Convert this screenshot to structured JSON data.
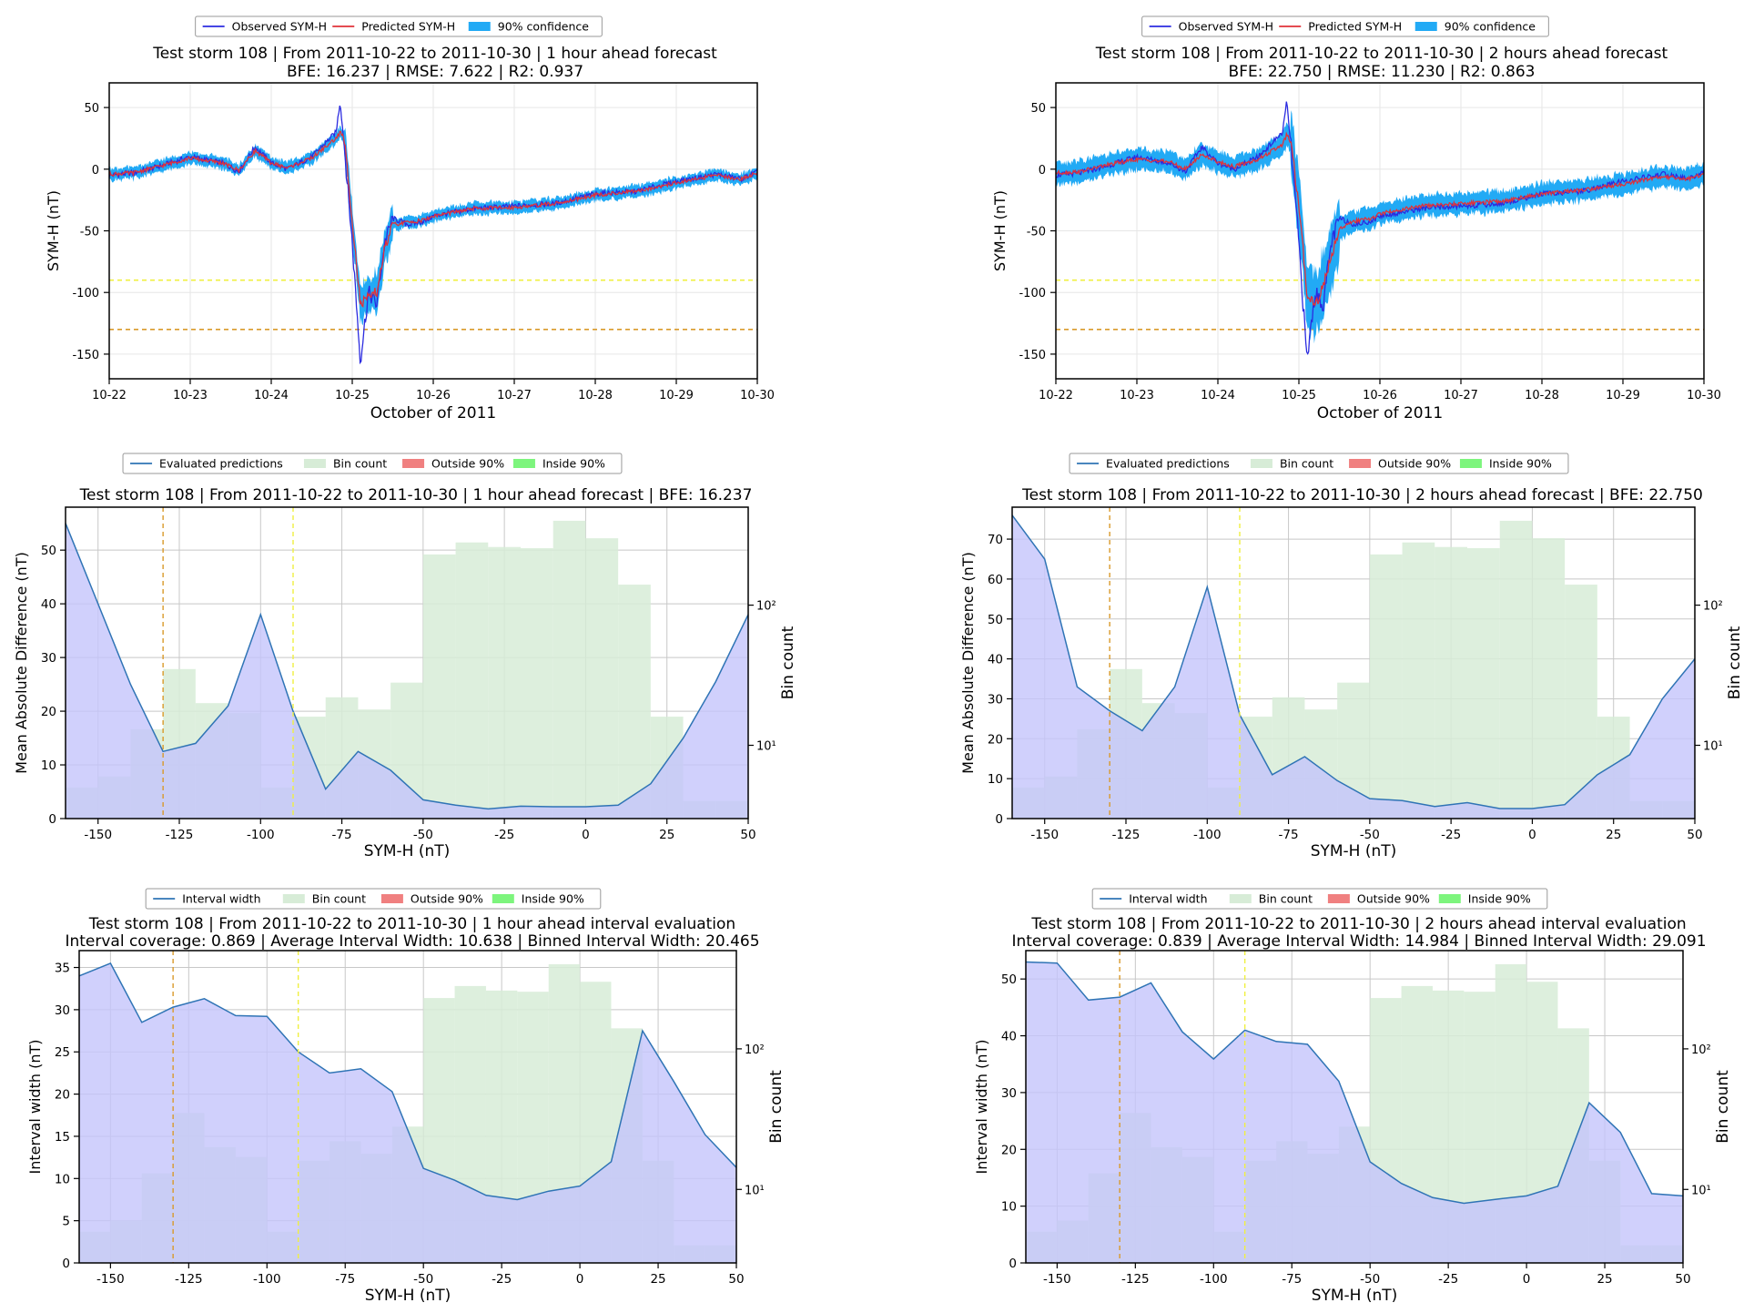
{
  "colors": {
    "observed": "#2b2be0",
    "predicted": "#e0323a",
    "band": "#22aaf5",
    "eval_line": "#2f74b5",
    "mad_fill": "#c4c4fb",
    "bin_fill": "#d7ecd7",
    "outside": "#f08080",
    "inside": "#7df57d",
    "thr_orange": "#d99a2b",
    "thr_yellow": "#f0f040"
  },
  "chart_data": [
    {
      "panel": "ts-1h",
      "type": "line",
      "legend": [
        "Observed SYM-H",
        "Predicted SYM-H",
        "90% confidence"
      ],
      "title_line1": "Test storm 108 | From 2011-10-22 to 2011-10-30 | 1 hour ahead forecast",
      "title_line2": "BFE: 16.237 | RMSE: 7.622 | R2: 0.937",
      "xlabel": "October of 2011",
      "ylabel": "SYM-H (nT)",
      "x_ticks": [
        "10-22",
        "10-23",
        "10-24",
        "10-25",
        "10-26",
        "10-27",
        "10-28",
        "10-29",
        "10-30"
      ],
      "xlim": [
        0,
        8
      ],
      "ylim": [
        -170,
        70
      ],
      "y_ticks": [
        50,
        0,
        -50,
        -100,
        -150
      ],
      "thresholds": [
        -90,
        -130
      ],
      "band_halfwidth": 5,
      "series": [
        {
          "name": "Observed SYM-H",
          "x": [
            0,
            0.3,
            0.6,
            1.0,
            1.4,
            1.6,
            1.8,
            2.0,
            2.2,
            2.5,
            2.8,
            2.85,
            2.9,
            3.0,
            3.1,
            3.2,
            3.3,
            3.4,
            3.5,
            3.7,
            3.9,
            4.0,
            4.5,
            5.0,
            5.5,
            6.0,
            6.5,
            7.0,
            7.5,
            7.8,
            8.0
          ],
          "y": [
            -5,
            -3,
            2,
            10,
            5,
            -2,
            18,
            5,
            0,
            10,
            30,
            55,
            20,
            -60,
            -155,
            -100,
            -110,
            -60,
            -40,
            -45,
            -42,
            -38,
            -32,
            -30,
            -28,
            -20,
            -18,
            -10,
            -4,
            -8,
            -2
          ]
        },
        {
          "name": "Predicted SYM-H",
          "x": [
            0,
            0.3,
            0.6,
            1.0,
            1.4,
            1.6,
            1.8,
            2.0,
            2.2,
            2.5,
            2.8,
            2.85,
            2.9,
            3.0,
            3.1,
            3.2,
            3.3,
            3.4,
            3.5,
            3.7,
            3.9,
            4.0,
            4.5,
            5.0,
            5.5,
            6.0,
            6.5,
            7.0,
            7.5,
            7.8,
            8.0
          ],
          "y": [
            -4,
            -3,
            2,
            9,
            5,
            -1,
            15,
            5,
            1,
            9,
            25,
            30,
            25,
            -40,
            -110,
            -105,
            -100,
            -65,
            -45,
            -43,
            -41,
            -38,
            -32,
            -31,
            -28,
            -21,
            -18,
            -11,
            -5,
            -8,
            -3
          ]
        }
      ]
    },
    {
      "panel": "ts-2h",
      "type": "line",
      "legend": [
        "Observed SYM-H",
        "Predicted SYM-H",
        "90% confidence"
      ],
      "title_line1": "Test storm 108 | From 2011-10-22 to 2011-10-30 | 2 hours ahead forecast",
      "title_line2": "BFE: 22.750 | RMSE: 11.230 | R2: 0.863",
      "xlabel": "October of 2011",
      "ylabel": "SYM-H (nT)",
      "x_ticks": [
        "10-22",
        "10-23",
        "10-24",
        "10-25",
        "10-26",
        "10-27",
        "10-28",
        "10-29",
        "10-30"
      ],
      "xlim": [
        0,
        8
      ],
      "ylim": [
        -170,
        70
      ],
      "y_ticks": [
        50,
        0,
        -50,
        -100,
        -150
      ],
      "thresholds": [
        -90,
        -130
      ],
      "band_halfwidth": 9,
      "series": [
        {
          "name": "Observed SYM-H",
          "x": [
            0,
            0.3,
            0.6,
            1.0,
            1.4,
            1.6,
            1.8,
            2.0,
            2.2,
            2.5,
            2.8,
            2.85,
            2.9,
            3.0,
            3.1,
            3.2,
            3.3,
            3.4,
            3.5,
            3.7,
            3.9,
            4.0,
            4.5,
            5.0,
            5.5,
            6.0,
            6.5,
            7.0,
            7.5,
            7.8,
            8.0
          ],
          "y": [
            -5,
            -3,
            2,
            10,
            5,
            -2,
            18,
            5,
            0,
            10,
            30,
            55,
            20,
            -60,
            -155,
            -100,
            -110,
            -60,
            -40,
            -45,
            -42,
            -38,
            -32,
            -30,
            -28,
            -20,
            -18,
            -10,
            -4,
            -8,
            -2
          ]
        },
        {
          "name": "Predicted SYM-H",
          "x": [
            0,
            0.3,
            0.6,
            1.0,
            1.4,
            1.6,
            1.8,
            2.0,
            2.2,
            2.5,
            2.8,
            2.85,
            2.9,
            3.0,
            3.1,
            3.2,
            3.3,
            3.4,
            3.5,
            3.7,
            3.9,
            4.0,
            4.5,
            5.0,
            5.5,
            6.0,
            6.5,
            7.0,
            7.5,
            7.8,
            8.0
          ],
          "y": [
            -3,
            -2,
            3,
            8,
            6,
            0,
            12,
            6,
            2,
            8,
            20,
            28,
            22,
            -30,
            -100,
            -110,
            -95,
            -70,
            -48,
            -42,
            -40,
            -36,
            -30,
            -28,
            -26,
            -20,
            -17,
            -12,
            -6,
            -8,
            -4
          ]
        }
      ]
    },
    {
      "panel": "mad-1h",
      "type": "area",
      "legend": [
        "Evaluated predictions",
        "Bin count",
        "Outside 90%",
        "Inside 90%"
      ],
      "title_line1": "Test storm 108 | From 2011-10-22 to 2011-10-30 | 1 hour ahead forecast | BFE: 16.237",
      "xlabel": "SYM-H (nT)",
      "ylabel": "Mean Absolute Difference (nT)",
      "y2label": "Bin count",
      "xlim": [
        -160,
        50
      ],
      "ylim": [
        0,
        58
      ],
      "y_ticks": [
        0,
        10,
        20,
        30,
        40,
        50
      ],
      "x_ticks": [
        -150,
        -125,
        -100,
        -75,
        -50,
        -25,
        0,
        25,
        50
      ],
      "y2lim": [
        3,
        500
      ],
      "y2_ticks": [
        10,
        100
      ],
      "y2_tick_labels": [
        "10¹",
        "10²"
      ],
      "thresholds": [
        -90,
        -130
      ],
      "x": [
        -160,
        -150,
        -140,
        -130,
        -120,
        -110,
        -100,
        -90,
        -80,
        -70,
        -60,
        -50,
        -40,
        -30,
        -20,
        -10,
        0,
        10,
        20,
        30,
        40,
        50
      ],
      "values": [
        55,
        40,
        25,
        12.5,
        14,
        21,
        38,
        20,
        5.5,
        12.5,
        9,
        3.5,
        2.5,
        1.8,
        2.3,
        2.2,
        2.2,
        2.5,
        6.5,
        15,
        25.5,
        38
      ],
      "bin_edges": [
        -160,
        -150,
        -140,
        -130,
        -120,
        -110,
        -100,
        -90,
        -80,
        -70,
        -60,
        -50,
        -40,
        -30,
        -20,
        -10,
        0,
        10,
        20,
        30,
        40,
        50
      ],
      "bin_counts": [
        5,
        6,
        13,
        35,
        20,
        17,
        5,
        16,
        22,
        18,
        28,
        230,
        280,
        260,
        255,
        400,
        300,
        140,
        16,
        4,
        4
      ]
    },
    {
      "panel": "mad-2h",
      "type": "area",
      "legend": [
        "Evaluated predictions",
        "Bin count",
        "Outside 90%",
        "Inside 90%"
      ],
      "title_line1": "Test storm 108 | From 2011-10-22 to 2011-10-30 | 2 hours ahead forecast | BFE: 22.750",
      "xlabel": "SYM-H (nT)",
      "ylabel": "Mean Absolute Difference (nT)",
      "y2label": "Bin count",
      "xlim": [
        -160,
        50
      ],
      "ylim": [
        0,
        78
      ],
      "y_ticks": [
        0,
        10,
        20,
        30,
        40,
        50,
        60,
        70
      ],
      "x_ticks": [
        -150,
        -125,
        -100,
        -75,
        -50,
        -25,
        0,
        25,
        50
      ],
      "y2lim": [
        3,
        500
      ],
      "y2_ticks": [
        10,
        100
      ],
      "y2_tick_labels": [
        "10¹",
        "10²"
      ],
      "thresholds": [
        -90,
        -130
      ],
      "x": [
        -160,
        -150,
        -140,
        -130,
        -120,
        -110,
        -100,
        -90,
        -80,
        -70,
        -60,
        -50,
        -40,
        -30,
        -20,
        -10,
        0,
        10,
        20,
        30,
        40,
        50
      ],
      "values": [
        76,
        65,
        33,
        27,
        22,
        33,
        58,
        26,
        11,
        15.5,
        9.5,
        5,
        4.5,
        3,
        4,
        2.5,
        2.5,
        3.5,
        11,
        16,
        30,
        40
      ],
      "bin_edges": [
        -160,
        -150,
        -140,
        -130,
        -120,
        -110,
        -100,
        -90,
        -80,
        -70,
        -60,
        -50,
        -40,
        -30,
        -20,
        -10,
        0,
        10,
        20,
        30,
        40,
        50
      ],
      "bin_counts": [
        5,
        6,
        13,
        35,
        20,
        17,
        5,
        16,
        22,
        18,
        28,
        230,
        280,
        260,
        255,
        400,
        300,
        140,
        16,
        4,
        4
      ]
    },
    {
      "panel": "iw-1h",
      "type": "area",
      "legend": [
        "Interval width",
        "Bin count",
        "Outside 90%",
        "Inside 90%"
      ],
      "title_line1": "Test storm 108 | From 2011-10-22 to 2011-10-30 | 1 hour ahead interval evaluation",
      "title_line2": "Interval coverage: 0.869 | Average Interval Width: 10.638 | Binned Interval Width: 20.465",
      "xlabel": "SYM-H (nT)",
      "ylabel": "Interval width (nT)",
      "y2label": "Bin count",
      "xlim": [
        -160,
        50
      ],
      "ylim": [
        0,
        37
      ],
      "y_ticks": [
        0,
        5,
        10,
        15,
        20,
        25,
        30,
        35
      ],
      "x_ticks": [
        -150,
        -125,
        -100,
        -75,
        -50,
        -25,
        0,
        25,
        50
      ],
      "y2lim": [
        3,
        500
      ],
      "y2_ticks": [
        10,
        100
      ],
      "y2_tick_labels": [
        "10¹",
        "10²"
      ],
      "thresholds": [
        -90,
        -130
      ],
      "x": [
        -160,
        -150,
        -140,
        -130,
        -120,
        -110,
        -100,
        -90,
        -80,
        -70,
        -60,
        -50,
        -40,
        -30,
        -20,
        -10,
        0,
        10,
        20,
        30,
        40,
        50
      ],
      "values": [
        34,
        35.5,
        28.5,
        30.3,
        31.3,
        29.3,
        29.2,
        25,
        22.5,
        23,
        20.3,
        11.2,
        9.8,
        8,
        7.5,
        8.5,
        9.1,
        12,
        27.5,
        21.5,
        15.2,
        11.3
      ],
      "bin_edges": [
        -160,
        -150,
        -140,
        -130,
        -120,
        -110,
        -100,
        -90,
        -80,
        -70,
        -60,
        -50,
        -40,
        -30,
        -20,
        -10,
        0,
        10,
        20,
        30,
        40,
        50
      ],
      "bin_counts": [
        5,
        6,
        13,
        35,
        20,
        17,
        5,
        16,
        22,
        18,
        28,
        230,
        280,
        260,
        255,
        400,
        300,
        140,
        16,
        4,
        4
      ]
    },
    {
      "panel": "iw-2h",
      "type": "area",
      "legend": [
        "Interval width",
        "Bin count",
        "Outside 90%",
        "Inside 90%"
      ],
      "title_line1": "Test storm 108 | From 2011-10-22 to 2011-10-30 | 2 hours ahead interval evaluation",
      "title_line2": "Interval coverage: 0.839 | Average Interval Width: 14.984 | Binned Interval Width: 29.091",
      "xlabel": "SYM-H (nT)",
      "ylabel": "Interval width (nT)",
      "y2label": "Bin count",
      "xlim": [
        -160,
        50
      ],
      "ylim": [
        0,
        55
      ],
      "y_ticks": [
        0,
        10,
        20,
        30,
        40,
        50
      ],
      "x_ticks": [
        -150,
        -125,
        -100,
        -75,
        -50,
        -25,
        0,
        25,
        50
      ],
      "y2lim": [
        3,
        500
      ],
      "y2_ticks": [
        10,
        100
      ],
      "y2_tick_labels": [
        "10¹",
        "10²"
      ],
      "thresholds": [
        -90,
        -130
      ],
      "x": [
        -160,
        -150,
        -140,
        -130,
        -120,
        -110,
        -100,
        -90,
        -80,
        -70,
        -60,
        -50,
        -40,
        -30,
        -20,
        -10,
        0,
        10,
        20,
        30,
        40,
        50
      ],
      "values": [
        53,
        52.8,
        46.3,
        46.8,
        49.3,
        40.7,
        35.9,
        41,
        39,
        38.5,
        32,
        17.8,
        14,
        11.5,
        10.5,
        11.2,
        11.8,
        13.5,
        28.2,
        23,
        12.2,
        11.8
      ],
      "bin_edges": [
        -160,
        -150,
        -140,
        -130,
        -120,
        -110,
        -100,
        -90,
        -80,
        -70,
        -60,
        -50,
        -40,
        -30,
        -20,
        -10,
        0,
        10,
        20,
        30,
        40,
        50
      ],
      "bin_counts": [
        5,
        6,
        13,
        35,
        20,
        17,
        5,
        16,
        22,
        18,
        28,
        230,
        280,
        260,
        255,
        400,
        300,
        140,
        16,
        4,
        4
      ]
    }
  ]
}
